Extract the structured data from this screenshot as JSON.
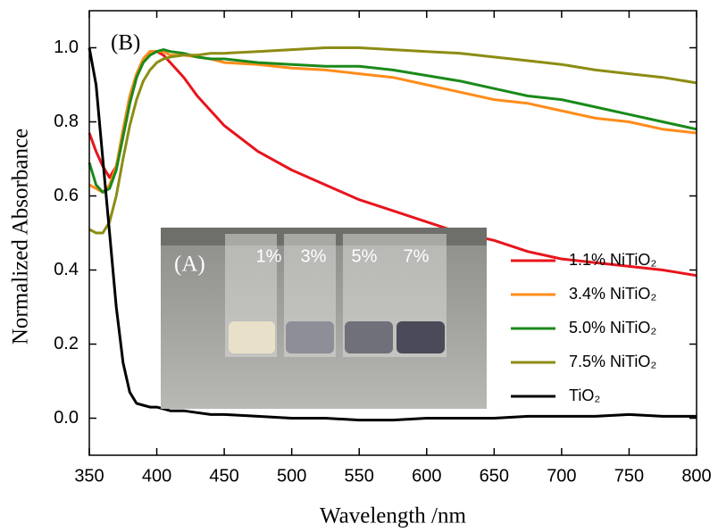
{
  "chart_data": {
    "type": "line",
    "panel_label": "(B)",
    "xlabel": "Wavelength /nm",
    "ylabel": "Normalized Absorbance",
    "inset": {
      "label": "(A)",
      "vial_labels": [
        "1%",
        "3%",
        "5%",
        "7%"
      ]
    },
    "x": [
      350,
      355,
      360,
      365,
      370,
      375,
      380,
      385,
      390,
      395,
      400,
      405,
      410,
      420,
      430,
      440,
      450,
      475,
      500,
      525,
      550,
      575,
      600,
      625,
      650,
      675,
      700,
      725,
      750,
      775,
      800
    ],
    "series": [
      {
        "name": "1.1% NiTiO₂",
        "color": "#e8141c",
        "values": [
          0.77,
          0.72,
          0.68,
          0.65,
          0.68,
          0.76,
          0.85,
          0.92,
          0.97,
          0.99,
          0.99,
          0.98,
          0.96,
          0.92,
          0.87,
          0.83,
          0.79,
          0.72,
          0.67,
          0.63,
          0.59,
          0.56,
          0.53,
          0.5,
          0.48,
          0.45,
          0.43,
          0.42,
          0.41,
          0.4,
          0.385
        ]
      },
      {
        "name": "3.4% NiTiO₂",
        "color": "#ff8c1a",
        "values": [
          0.63,
          0.62,
          0.61,
          0.63,
          0.68,
          0.78,
          0.87,
          0.93,
          0.97,
          0.99,
          0.99,
          0.99,
          0.98,
          0.98,
          0.975,
          0.97,
          0.96,
          0.955,
          0.945,
          0.94,
          0.93,
          0.92,
          0.9,
          0.88,
          0.86,
          0.85,
          0.83,
          0.81,
          0.8,
          0.78,
          0.77
        ]
      },
      {
        "name": "5.0% NiTiO₂",
        "color": "#1a8a1a",
        "values": [
          0.69,
          0.63,
          0.61,
          0.62,
          0.67,
          0.76,
          0.85,
          0.92,
          0.96,
          0.98,
          0.99,
          0.995,
          0.99,
          0.985,
          0.975,
          0.97,
          0.97,
          0.96,
          0.955,
          0.95,
          0.95,
          0.94,
          0.925,
          0.91,
          0.89,
          0.87,
          0.86,
          0.84,
          0.82,
          0.8,
          0.78
        ]
      },
      {
        "name": "7.5% NiTiO₂",
        "color": "#8c8c14",
        "values": [
          0.51,
          0.5,
          0.5,
          0.53,
          0.6,
          0.7,
          0.79,
          0.86,
          0.91,
          0.94,
          0.96,
          0.97,
          0.975,
          0.98,
          0.98,
          0.985,
          0.985,
          0.99,
          0.995,
          1.0,
          1.0,
          0.995,
          0.99,
          0.985,
          0.975,
          0.965,
          0.955,
          0.94,
          0.93,
          0.92,
          0.905
        ]
      },
      {
        "name": "TiO₂",
        "color": "#000000",
        "values": [
          1.0,
          0.9,
          0.7,
          0.5,
          0.3,
          0.15,
          0.07,
          0.04,
          0.035,
          0.03,
          0.03,
          0.025,
          0.02,
          0.02,
          0.015,
          0.01,
          0.01,
          0.005,
          0.0,
          0.0,
          -0.005,
          -0.005,
          0.0,
          0.0,
          0.0,
          0.005,
          0.005,
          0.005,
          0.01,
          0.005,
          0.005
        ]
      }
    ],
    "xlim": [
      350,
      800
    ],
    "xticks": [
      350,
      400,
      450,
      500,
      550,
      600,
      650,
      700,
      750,
      800
    ],
    "ylim": [
      -0.1,
      1.1
    ],
    "yticks": [
      {
        "value": 0,
        "label": "0.0"
      },
      0.2,
      0.4,
      0.6,
      0.8,
      {
        "value": 1,
        "label": "1.0"
      }
    ],
    "grid": false
  }
}
